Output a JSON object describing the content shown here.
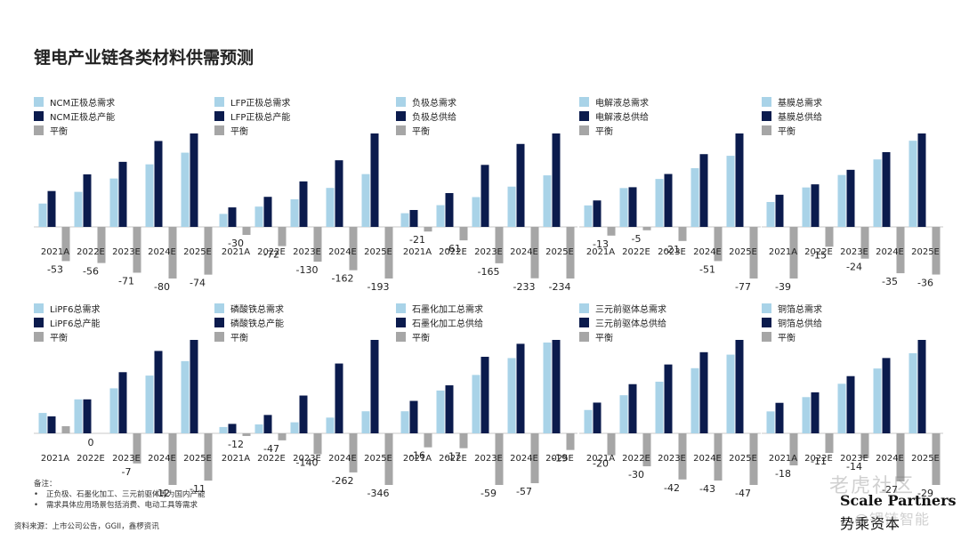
{
  "page": {
    "title": "锂电产业链各类材料供需预测",
    "notes_header": "备注：",
    "notes": [
      "正负极、石墨化加工、三元前驱体等为国内产能",
      "需求具体应用场景包括消费、电动工具等需求"
    ],
    "source": "资料来源：上市公司公告，GGII，鑫椤资讯",
    "brand_en": "Scale Partners",
    "brand_cn": "势乘资本",
    "watermark_top": "老虎社区",
    "watermark_bottom": "@锂链智能"
  },
  "colors": {
    "demand": "#a9d3e8",
    "supply": "#0b1b4d",
    "balance": "#a6a6a6",
    "text": "#222222"
  },
  "chart_data": [
    {
      "type": "bar",
      "categories": [
        "2021A",
        "2022E",
        "2023E",
        "2024E",
        "2025E"
      ],
      "series": [
        {
          "name": "NCM正极总需求",
          "values": [
            28,
            42,
            58,
            75,
            89
          ]
        },
        {
          "name": "NCM正极总产能",
          "values": [
            43,
            63,
            78,
            103,
            112
          ]
        },
        {
          "name": "平衡",
          "values": [
            -53,
            -56,
            -71,
            -80,
            -74
          ]
        }
      ],
      "balance_labels": [
        "-53",
        "-56",
        "-71",
        "-80",
        "-74"
      ]
    },
    {
      "type": "bar",
      "categories": [
        "2021A",
        "2022E",
        "2023E",
        "2024E",
        "2025E"
      ],
      "series": [
        {
          "name": "LFP正极总需求",
          "values": [
            16,
            25,
            34,
            48,
            65
          ]
        },
        {
          "name": "LFP正极总产能",
          "values": [
            24,
            37,
            56,
            82,
            115
          ]
        },
        {
          "name": "平衡",
          "values": [
            -30,
            -72,
            -130,
            -162,
            -193
          ]
        }
      ],
      "balance_labels": [
        "-30",
        "-72",
        "-130",
        "-162",
        "-193"
      ]
    },
    {
      "type": "bar",
      "categories": [
        "2021A",
        "2022E",
        "2023E",
        "2024E",
        "2025E"
      ],
      "series": [
        {
          "name": "负极总需求",
          "values": [
            17,
            27,
            37,
            50,
            64
          ]
        },
        {
          "name": "负极总供给",
          "values": [
            21,
            42,
            77,
            103,
            116
          ]
        },
        {
          "name": "平衡",
          "values": [
            -21,
            -61,
            -165,
            -233,
            -234
          ]
        }
      ],
      "balance_labels": [
        "-21",
        "-61",
        "-165",
        "-233",
        "-234"
      ]
    },
    {
      "type": "bar",
      "categories": [
        "2021A",
        "2022E",
        "2023E",
        "2024E",
        "2025E"
      ],
      "series": [
        {
          "name": "电解液总需求",
          "values": [
            26,
            47,
            58,
            71,
            86
          ]
        },
        {
          "name": "电解液总供给",
          "values": [
            32,
            48,
            64,
            88,
            113
          ]
        },
        {
          "name": "平衡",
          "values": [
            -13,
            -5,
            -21,
            -51,
            -77
          ]
        }
      ],
      "balance_labels": [
        "-13",
        "-5",
        "-21",
        "-51",
        "-77"
      ]
    },
    {
      "type": "bar",
      "categories": [
        "2021A",
        "2022E",
        "2023E",
        "2024E",
        "2025E"
      ],
      "series": [
        {
          "name": "基膜总需求",
          "values": [
            24,
            38,
            50,
            65,
            83
          ]
        },
        {
          "name": "基膜总供给",
          "values": [
            31,
            41,
            55,
            72,
            90
          ]
        },
        {
          "name": "平衡",
          "values": [
            -39,
            -15,
            -24,
            -35,
            -36
          ]
        }
      ],
      "balance_labels": [
        "-39",
        "-15",
        "-24",
        "-35",
        "-36"
      ]
    },
    {
      "type": "bar",
      "categories": [
        "2021A",
        "2022E",
        "2023E",
        "2024E",
        "2025E"
      ],
      "series": [
        {
          "name": "LiPF6总需求",
          "values": [
            24,
            40,
            53,
            68,
            85
          ]
        },
        {
          "name": "LiPF6总产能",
          "values": [
            20,
            40,
            72,
            97,
            110
          ]
        },
        {
          "name": "平衡",
          "values": [
            2,
            0,
            -7,
            -12,
            -11
          ]
        }
      ],
      "balance_labels": [
        "2",
        "0",
        "-7",
        "-12",
        "-11"
      ]
    },
    {
      "type": "bar",
      "categories": [
        "2021A",
        "2022E",
        "2023E",
        "2024E",
        "2025E"
      ],
      "series": [
        {
          "name": "磷酸铁总需求",
          "values": [
            12,
            17,
            21,
            30,
            42
          ]
        },
        {
          "name": "磷酸铁总产能",
          "values": [
            18,
            35,
            72,
            133,
            178
          ]
        },
        {
          "name": "平衡",
          "values": [
            -12,
            -47,
            -140,
            -262,
            -346
          ]
        }
      ],
      "balance_labels": [
        "-12",
        "-47",
        "-140",
        "-262",
        "-346"
      ]
    },
    {
      "type": "bar",
      "categories": [
        "2021A",
        "2022E",
        "2023E",
        "2024E",
        "2025E"
      ],
      "series": [
        {
          "name": "石墨化加工总需求",
          "values": [
            17,
            33,
            45,
            58,
            70
          ]
        },
        {
          "name": "石墨化加工总供给",
          "values": [
            25,
            37,
            59,
            69,
            72
          ]
        },
        {
          "name": "平衡",
          "values": [
            -16,
            -17,
            -59,
            -57,
            -19
          ]
        }
      ],
      "balance_labels": [
        "-16",
        "-17",
        "-59",
        "-57",
        "-19"
      ]
    },
    {
      "type": "bar",
      "categories": [
        "2021A",
        "2022E",
        "2023E",
        "2024E",
        "2025E"
      ],
      "series": [
        {
          "name": "三元前驱体总需求",
          "values": [
            19,
            31,
            42,
            53,
            64
          ]
        },
        {
          "name": "三元前驱体总供给",
          "values": [
            25,
            40,
            56,
            66,
            76
          ]
        },
        {
          "name": "平衡",
          "values": [
            -20,
            -30,
            -42,
            -43,
            -47
          ]
        }
      ],
      "balance_labels": [
        "-20",
        "-30",
        "-42",
        "-43",
        "-47"
      ]
    },
    {
      "type": "bar",
      "categories": [
        "2021A",
        "2022E",
        "2023E",
        "2024E",
        "2025E"
      ],
      "series": [
        {
          "name": "铜箔总需求",
          "values": [
            23,
            38,
            52,
            68,
            84
          ]
        },
        {
          "name": "铜箔总供给",
          "values": [
            32,
            43,
            60,
            79,
            98
          ]
        },
        {
          "name": "平衡",
          "values": [
            -18,
            -11,
            -14,
            -27,
            -29
          ]
        }
      ],
      "balance_labels": [
        "-18",
        "-11",
        "-14",
        "-27",
        "-29"
      ]
    }
  ]
}
